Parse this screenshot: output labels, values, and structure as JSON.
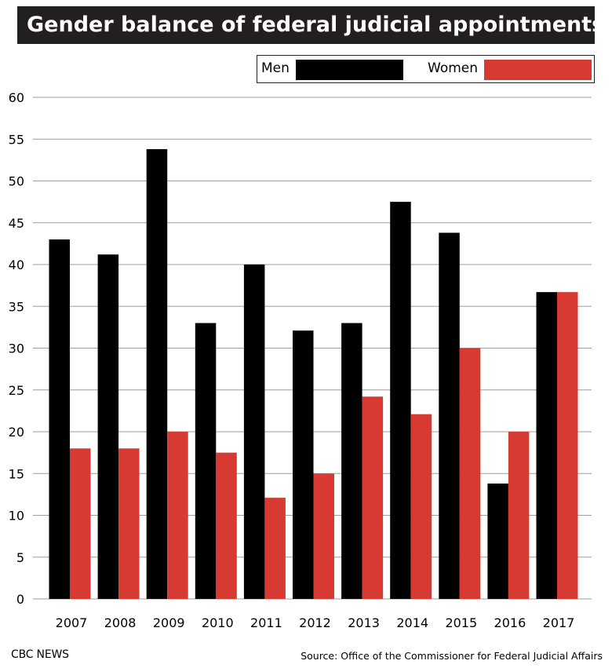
{
  "title": "Gender balance of federal judicial appointments",
  "legend": {
    "men_label": "Men",
    "women_label": "Women"
  },
  "colors": {
    "men": "#000000",
    "women": "#d63a33",
    "grid": "#9e9e9e",
    "title_bg": "#231f20"
  },
  "chart_data": {
    "type": "bar",
    "categories": [
      "2007",
      "2008",
      "2009",
      "2010",
      "2011",
      "2012",
      "2013",
      "2014",
      "2015",
      "2016",
      "2017"
    ],
    "series": [
      {
        "name": "Men",
        "values": [
          43,
          41.2,
          53.8,
          33,
          40,
          32.1,
          33,
          47.5,
          43.8,
          13.8,
          36.7
        ]
      },
      {
        "name": "Women",
        "values": [
          18,
          18,
          20,
          17.5,
          12.1,
          15,
          24.2,
          22.1,
          30,
          20,
          36.7
        ]
      }
    ],
    "yticks": [
      "0",
      "5",
      "10",
      "15",
      "20",
      "25",
      "30",
      "35",
      "40",
      "45",
      "50",
      "55",
      "60"
    ],
    "ylim": [
      0,
      60
    ],
    "grid": true,
    "legend_position": "top-right"
  },
  "footer": {
    "brand": "CBC NEWS",
    "source": "Source: Office of the Commissioner for Federal Judicial Affairs"
  }
}
